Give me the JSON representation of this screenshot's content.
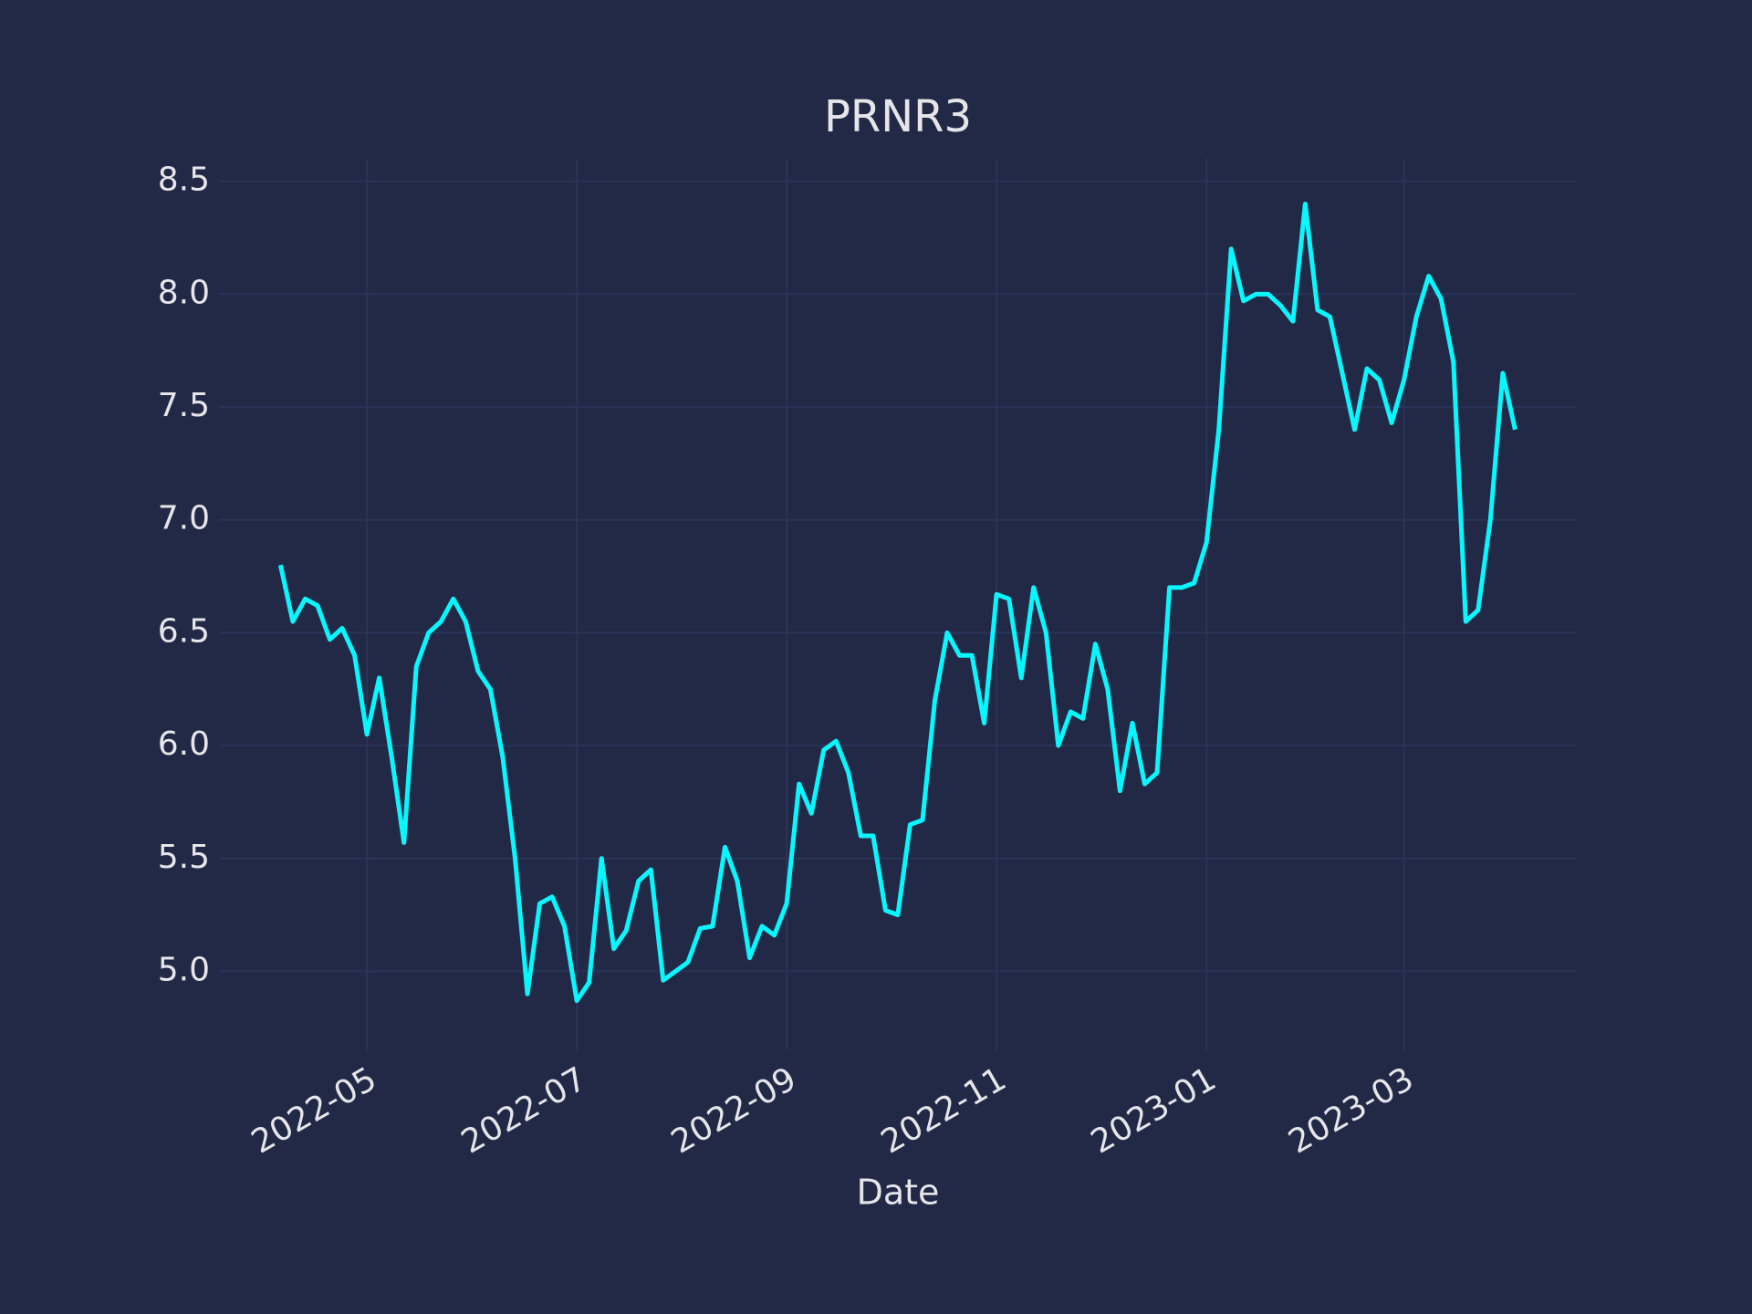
{
  "chart_data": {
    "type": "line",
    "title": "PRNR3",
    "x_label": "Date",
    "grid": true,
    "ylim": [
      4.65,
      8.6
    ],
    "yticks": [
      {
        "value": 5,
        "label": "5.0"
      },
      5.5,
      {
        "value": 6,
        "label": "6.0"
      },
      6.5,
      {
        "value": 7,
        "label": "7.0"
      },
      7.5,
      {
        "value": 8,
        "label": "8.0"
      },
      8.5
    ],
    "categories": [
      null,
      null,
      null,
      null,
      null,
      null,
      null,
      "2022-05",
      null,
      null,
      null,
      null,
      null,
      null,
      null,
      null,
      null,
      null,
      null,
      null,
      null,
      null,
      null,
      null,
      "2022-07",
      null,
      null,
      null,
      null,
      null,
      null,
      null,
      null,
      null,
      null,
      null,
      null,
      null,
      null,
      null,
      null,
      "2022-09",
      null,
      null,
      null,
      null,
      null,
      null,
      null,
      null,
      null,
      null,
      null,
      null,
      null,
      null,
      null,
      null,
      "2022-11",
      null,
      null,
      null,
      null,
      null,
      null,
      null,
      null,
      null,
      null,
      null,
      null,
      null,
      null,
      null,
      null,
      "2023-01",
      null,
      null,
      null,
      null,
      null,
      null,
      null,
      null,
      null,
      null,
      null,
      null,
      null,
      null,
      null,
      "2023-03",
      null,
      null,
      null,
      null,
      null,
      null,
      null,
      null,
      null
    ],
    "series": [
      {
        "name": "PRNR3",
        "color": "#08f7fe",
        "values": [
          6.8,
          6.55,
          6.65,
          6.62,
          6.47,
          6.52,
          6.4,
          6.05,
          6.3,
          5.95,
          5.57,
          6.35,
          6.5,
          6.55,
          6.65,
          6.55,
          6.33,
          6.25,
          5.95,
          5.5,
          4.9,
          5.3,
          5.33,
          5.2,
          4.87,
          4.95,
          5.5,
          5.1,
          5.18,
          5.4,
          5.45,
          4.96,
          5.0,
          5.04,
          5.19,
          5.2,
          5.55,
          5.4,
          5.06,
          5.2,
          5.16,
          5.3,
          5.83,
          5.7,
          5.98,
          6.02,
          5.88,
          5.6,
          5.6,
          5.27,
          5.25,
          5.65,
          5.67,
          6.2,
          6.5,
          6.4,
          6.4,
          6.1,
          6.67,
          6.65,
          6.3,
          6.7,
          6.5,
          6.0,
          6.15,
          6.12,
          6.45,
          6.25,
          5.8,
          6.1,
          5.83,
          5.88,
          6.7,
          6.7,
          6.72,
          6.9,
          7.4,
          8.2,
          7.97,
          8.0,
          8.0,
          7.95,
          7.88,
          8.4,
          7.93,
          7.9,
          7.65,
          7.4,
          7.67,
          7.62,
          7.43,
          7.62,
          7.9,
          8.08,
          7.98,
          7.7,
          6.55,
          6.6,
          7.0,
          7.65,
          7.4
        ]
      }
    ]
  }
}
